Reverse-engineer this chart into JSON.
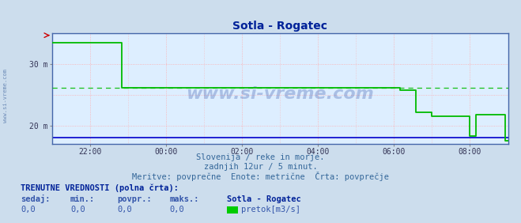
{
  "title": "Sotla - Rogatec",
  "bg_color": "#ccdded",
  "plot_bg_color": "#ddeeff",
  "grid_color_v": "#ffaaaa",
  "grid_color_h": "#ffaaaa",
  "x_min": 0,
  "x_max": 144,
  "y_min": 17.0,
  "y_max": 35.0,
  "y_tick_vals": [
    20,
    30
  ],
  "y_tick_labels": [
    "20 m",
    "30 m"
  ],
  "x_tick_vals": [
    12,
    36,
    60,
    84,
    108,
    132,
    144
  ],
  "x_tick_labels": [
    "22:00",
    "00:00",
    "02:00",
    "04:00",
    "06:00",
    "08:00",
    ""
  ],
  "green_line_color": "#00bb00",
  "blue_line_color": "#0000cc",
  "ref_line_color": "#00bb00",
  "ref_line_y": 26.2,
  "arrow_color": "#cc0000",
  "watermark_text": "www.si-vreme.com",
  "watermark_color": "#3355aa",
  "subtitle1": "Slovenija / reke in morje.",
  "subtitle2": "zadnjih 12ur / 5 minut.",
  "subtitle3": "Meritve: povprečne  Enote: metrične  Črta: povprečje",
  "subtitle_color": "#336699",
  "label_color": "#3355aa",
  "legend_title": "TRENUTNE VREDNOSTI (polna črta):",
  "col_headers": [
    "sedaj:",
    "min.:",
    "povpr.:",
    "maks.:"
  ],
  "col_values": [
    "0,0",
    "0,0",
    "0,0",
    "0,0"
  ],
  "legend_station": "Sotla - Rogatec",
  "legend_item": "pretok[m3/s]",
  "legend_item_color": "#00cc00",
  "sidebar_text": "www.si-vreme.com",
  "sidebar_color": "#5577aa",
  "green_x": [
    0,
    14,
    14,
    22,
    22,
    108,
    108,
    110,
    110,
    115,
    115,
    120,
    120,
    132,
    132,
    134,
    134,
    143,
    143,
    144
  ],
  "green_y": [
    33.5,
    33.5,
    33.5,
    26.2,
    26.2,
    26.2,
    26.2,
    25.8,
    25.8,
    22.2,
    22.2,
    21.5,
    21.5,
    18.3,
    18.3,
    21.8,
    21.8,
    21.8,
    17.5,
    17.5
  ],
  "blue_y": 18.0,
  "y_extra_grid": [
    25
  ]
}
